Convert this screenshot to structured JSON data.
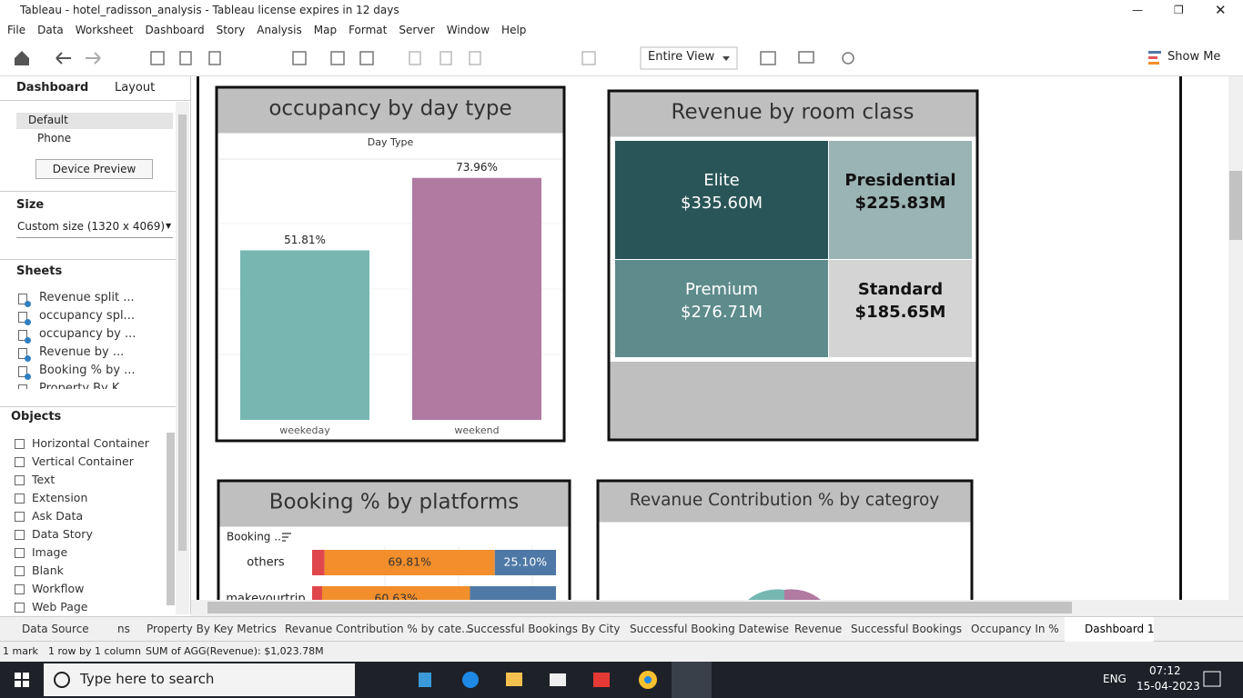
{
  "window": {
    "title": "Tableau - hotel_radisson_analysis - Tableau license expires in 12 days"
  },
  "menu": [
    "File",
    "Data",
    "Worksheet",
    "Dashboard",
    "Story",
    "Analysis",
    "Map",
    "Format",
    "Server",
    "Window",
    "Help"
  ],
  "toolbar": {
    "view": "Entire View",
    "show_me": "Show Me"
  },
  "sidebar": {
    "tabs": [
      "Dashboard",
      "Layout"
    ],
    "devices": [
      "Default",
      "Phone"
    ],
    "device_preview": "Device Preview",
    "size_label": "Size",
    "size_value": "Custom size (1320 x 4069)",
    "sheets_label": "Sheets",
    "sheets": [
      "Revenue split ...",
      "occupancy spl...",
      "occupancy by ...",
      "Revenue by ...",
      "Booking % by ...",
      "Property By K..."
    ],
    "objects_label": "Objects",
    "objects": [
      "Horizontal Container",
      "Vertical Container",
      "Text",
      "Extension",
      "Ask Data",
      "Data Story",
      "Image",
      "Blank",
      "Workflow",
      "Web Page"
    ]
  },
  "chart_data": [
    {
      "type": "bar",
      "title": "occupancy by day type",
      "header": "Day Type",
      "categories": [
        "weekeday",
        "weekend"
      ],
      "values": [
        51.81,
        73.96
      ],
      "value_labels": [
        "51.81%",
        "73.96%"
      ],
      "colors": [
        "#76b7b2",
        "#b07aa1"
      ]
    },
    {
      "type": "treemap",
      "title": "Revenue by room class",
      "categories": [
        "Elite",
        "Presidential",
        "Premium",
        "Standard"
      ],
      "values": [
        335600000,
        225830000,
        276710000,
        185650000
      ],
      "value_labels": [
        "$335.60M",
        "$225.83M",
        "$276.71M",
        "$185.65M"
      ],
      "colors": [
        "#2a5558",
        "#9ab3b3",
        "#5e8b8c",
        "#d4d4d4"
      ]
    },
    {
      "type": "barh",
      "title": "Booking % by platforms",
      "header": "Booking ..",
      "categories": [
        "others",
        "makeyourtrip"
      ],
      "series": [
        {
          "color": "#e0474c",
          "values": [
            5.09,
            4.1
          ]
        },
        {
          "color": "#f28e2b",
          "values": [
            69.81,
            60.63
          ],
          "value_labels": [
            "69.81%",
            "60.63%"
          ]
        },
        {
          "color": "#4e79a7",
          "values": [
            25.1,
            35.27
          ],
          "value_labels": [
            "25.10%",
            null
          ]
        }
      ]
    },
    {
      "type": "pie",
      "title": "Revanue Contribution % by categroy"
    }
  ],
  "sheet_tabs": [
    "Data Source",
    "ns",
    "Property By Key Metrics",
    "Revanue Contribution % by cate...",
    "Successful Bookings By City",
    "Successful Booking Datewise",
    "Revenue",
    "Successful Bookings",
    "Occupancy In %",
    "Dashboard 1"
  ],
  "status": {
    "marks": "1 mark",
    "rows": "1 row by 1 column",
    "sum": "SUM of AGG(Revenue): $1,023.78M"
  },
  "taskbar": {
    "search": "Type here to search",
    "lang": "ENG",
    "time": "07:12",
    "date": "15-04-2023"
  }
}
